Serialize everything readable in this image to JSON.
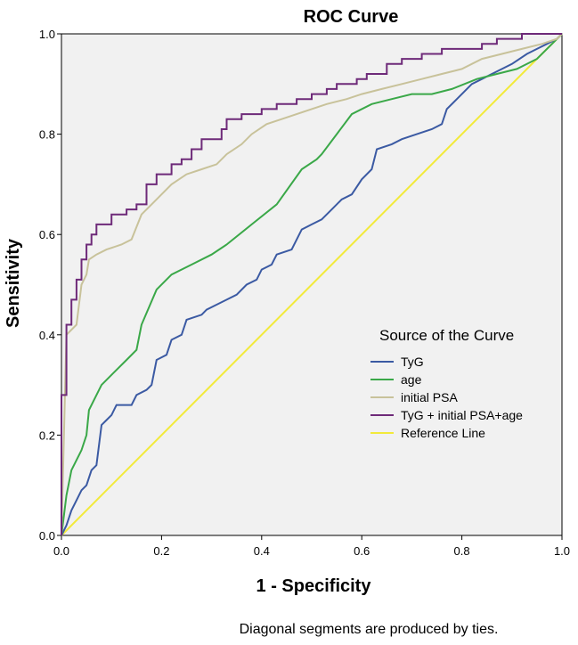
{
  "chart_data": {
    "type": "line",
    "title": "ROC Curve",
    "xlabel": "1 - Specificity",
    "ylabel": "Sensitivity",
    "xlim": [
      0,
      1
    ],
    "ylim": [
      0,
      1
    ],
    "xticks": [
      "0.0",
      "0.2",
      "0.4",
      "0.6",
      "0.8",
      "1.0"
    ],
    "yticks": [
      "0.0",
      "0.2",
      "0.4",
      "0.6",
      "0.8",
      "1.0"
    ],
    "legend_title": "Source of the Curve",
    "legend_position": "lower-right",
    "footnote": "Diagonal segments are produced by ties.",
    "series": [
      {
        "name": "TyG",
        "color": "#3b5aa3",
        "points": [
          [
            0,
            0
          ],
          [
            0.01,
            0.02
          ],
          [
            0.02,
            0.05
          ],
          [
            0.03,
            0.07
          ],
          [
            0.04,
            0.09
          ],
          [
            0.05,
            0.1
          ],
          [
            0.06,
            0.13
          ],
          [
            0.07,
            0.14
          ],
          [
            0.08,
            0.22
          ],
          [
            0.09,
            0.23
          ],
          [
            0.1,
            0.24
          ],
          [
            0.11,
            0.26
          ],
          [
            0.14,
            0.26
          ],
          [
            0.15,
            0.28
          ],
          [
            0.17,
            0.29
          ],
          [
            0.18,
            0.3
          ],
          [
            0.19,
            0.35
          ],
          [
            0.21,
            0.36
          ],
          [
            0.22,
            0.39
          ],
          [
            0.24,
            0.4
          ],
          [
            0.25,
            0.43
          ],
          [
            0.28,
            0.44
          ],
          [
            0.29,
            0.45
          ],
          [
            0.31,
            0.46
          ],
          [
            0.33,
            0.47
          ],
          [
            0.35,
            0.48
          ],
          [
            0.37,
            0.5
          ],
          [
            0.39,
            0.51
          ],
          [
            0.4,
            0.53
          ],
          [
            0.42,
            0.54
          ],
          [
            0.43,
            0.56
          ],
          [
            0.46,
            0.57
          ],
          [
            0.48,
            0.61
          ],
          [
            0.5,
            0.62
          ],
          [
            0.52,
            0.63
          ],
          [
            0.54,
            0.65
          ],
          [
            0.56,
            0.67
          ],
          [
            0.58,
            0.68
          ],
          [
            0.6,
            0.71
          ],
          [
            0.62,
            0.73
          ],
          [
            0.63,
            0.77
          ],
          [
            0.66,
            0.78
          ],
          [
            0.68,
            0.79
          ],
          [
            0.71,
            0.8
          ],
          [
            0.74,
            0.81
          ],
          [
            0.76,
            0.82
          ],
          [
            0.77,
            0.85
          ],
          [
            0.79,
            0.87
          ],
          [
            0.82,
            0.9
          ],
          [
            0.84,
            0.91
          ],
          [
            0.86,
            0.92
          ],
          [
            0.88,
            0.93
          ],
          [
            0.9,
            0.94
          ],
          [
            0.93,
            0.96
          ],
          [
            0.95,
            0.97
          ],
          [
            0.97,
            0.98
          ],
          [
            0.99,
            0.99
          ],
          [
            1,
            1
          ]
        ]
      },
      {
        "name": "age",
        "color": "#3aa848",
        "points": [
          [
            0,
            0
          ],
          [
            0.01,
            0.08
          ],
          [
            0.02,
            0.13
          ],
          [
            0.04,
            0.17
          ],
          [
            0.05,
            0.2
          ],
          [
            0.055,
            0.25
          ],
          [
            0.08,
            0.3
          ],
          [
            0.1,
            0.32
          ],
          [
            0.13,
            0.35
          ],
          [
            0.15,
            0.37
          ],
          [
            0.16,
            0.42
          ],
          [
            0.19,
            0.49
          ],
          [
            0.22,
            0.52
          ],
          [
            0.26,
            0.54
          ],
          [
            0.3,
            0.56
          ],
          [
            0.33,
            0.58
          ],
          [
            0.38,
            0.62
          ],
          [
            0.43,
            0.66
          ],
          [
            0.48,
            0.73
          ],
          [
            0.51,
            0.75
          ],
          [
            0.52,
            0.76
          ],
          [
            0.55,
            0.8
          ],
          [
            0.58,
            0.84
          ],
          [
            0.62,
            0.86
          ],
          [
            0.66,
            0.87
          ],
          [
            0.7,
            0.88
          ],
          [
            0.74,
            0.88
          ],
          [
            0.78,
            0.89
          ],
          [
            0.83,
            0.91
          ],
          [
            0.87,
            0.92
          ],
          [
            0.91,
            0.93
          ],
          [
            0.95,
            0.95
          ],
          [
            0.98,
            0.98
          ],
          [
            1,
            1
          ]
        ]
      },
      {
        "name": "initial PSA",
        "color": "#c8c29a",
        "points": [
          [
            0,
            0
          ],
          [
            0.01,
            0.4
          ],
          [
            0.03,
            0.42
          ],
          [
            0.04,
            0.5
          ],
          [
            0.05,
            0.52
          ],
          [
            0.055,
            0.55
          ],
          [
            0.07,
            0.56
          ],
          [
            0.09,
            0.57
          ],
          [
            0.12,
            0.58
          ],
          [
            0.14,
            0.59
          ],
          [
            0.16,
            0.64
          ],
          [
            0.18,
            0.66
          ],
          [
            0.2,
            0.68
          ],
          [
            0.22,
            0.7
          ],
          [
            0.25,
            0.72
          ],
          [
            0.28,
            0.73
          ],
          [
            0.31,
            0.74
          ],
          [
            0.33,
            0.76
          ],
          [
            0.36,
            0.78
          ],
          [
            0.38,
            0.8
          ],
          [
            0.41,
            0.82
          ],
          [
            0.44,
            0.83
          ],
          [
            0.47,
            0.84
          ],
          [
            0.5,
            0.85
          ],
          [
            0.53,
            0.86
          ],
          [
            0.57,
            0.87
          ],
          [
            0.6,
            0.88
          ],
          [
            0.64,
            0.89
          ],
          [
            0.68,
            0.9
          ],
          [
            0.72,
            0.91
          ],
          [
            0.76,
            0.92
          ],
          [
            0.8,
            0.93
          ],
          [
            0.84,
            0.95
          ],
          [
            0.88,
            0.96
          ],
          [
            0.92,
            0.97
          ],
          [
            0.96,
            0.98
          ],
          [
            0.99,
            0.99
          ],
          [
            1,
            1
          ]
        ]
      },
      {
        "name": "TyG + initial PSA+age",
        "color": "#6e2a79",
        "points": [
          [
            0,
            0
          ],
          [
            0,
            0.28
          ],
          [
            0.01,
            0.28
          ],
          [
            0.01,
            0.42
          ],
          [
            0.02,
            0.42
          ],
          [
            0.02,
            0.47
          ],
          [
            0.03,
            0.47
          ],
          [
            0.03,
            0.51
          ],
          [
            0.04,
            0.51
          ],
          [
            0.04,
            0.55
          ],
          [
            0.05,
            0.55
          ],
          [
            0.05,
            0.58
          ],
          [
            0.06,
            0.58
          ],
          [
            0.06,
            0.6
          ],
          [
            0.07,
            0.6
          ],
          [
            0.07,
            0.62
          ],
          [
            0.1,
            0.62
          ],
          [
            0.1,
            0.64
          ],
          [
            0.13,
            0.64
          ],
          [
            0.13,
            0.65
          ],
          [
            0.15,
            0.65
          ],
          [
            0.15,
            0.66
          ],
          [
            0.17,
            0.66
          ],
          [
            0.17,
            0.7
          ],
          [
            0.19,
            0.7
          ],
          [
            0.19,
            0.72
          ],
          [
            0.22,
            0.72
          ],
          [
            0.22,
            0.74
          ],
          [
            0.24,
            0.74
          ],
          [
            0.24,
            0.75
          ],
          [
            0.26,
            0.75
          ],
          [
            0.26,
            0.77
          ],
          [
            0.28,
            0.77
          ],
          [
            0.28,
            0.79
          ],
          [
            0.32,
            0.79
          ],
          [
            0.32,
            0.81
          ],
          [
            0.33,
            0.81
          ],
          [
            0.33,
            0.83
          ],
          [
            0.36,
            0.83
          ],
          [
            0.36,
            0.84
          ],
          [
            0.4,
            0.84
          ],
          [
            0.4,
            0.85
          ],
          [
            0.43,
            0.85
          ],
          [
            0.43,
            0.86
          ],
          [
            0.47,
            0.86
          ],
          [
            0.47,
            0.87
          ],
          [
            0.5,
            0.87
          ],
          [
            0.5,
            0.88
          ],
          [
            0.53,
            0.88
          ],
          [
            0.53,
            0.89
          ],
          [
            0.55,
            0.89
          ],
          [
            0.55,
            0.9
          ],
          [
            0.59,
            0.9
          ],
          [
            0.59,
            0.91
          ],
          [
            0.61,
            0.91
          ],
          [
            0.61,
            0.92
          ],
          [
            0.65,
            0.92
          ],
          [
            0.65,
            0.94
          ],
          [
            0.68,
            0.94
          ],
          [
            0.68,
            0.95
          ],
          [
            0.72,
            0.95
          ],
          [
            0.72,
            0.96
          ],
          [
            0.76,
            0.96
          ],
          [
            0.76,
            0.97
          ],
          [
            0.84,
            0.97
          ],
          [
            0.84,
            0.98
          ],
          [
            0.87,
            0.98
          ],
          [
            0.87,
            0.99
          ],
          [
            0.92,
            0.99
          ],
          [
            0.92,
            1.0
          ],
          [
            1,
            1
          ]
        ]
      },
      {
        "name": "Reference Line",
        "color": "#f2ea3a",
        "points": [
          [
            0,
            0
          ],
          [
            1,
            1
          ]
        ]
      }
    ]
  }
}
